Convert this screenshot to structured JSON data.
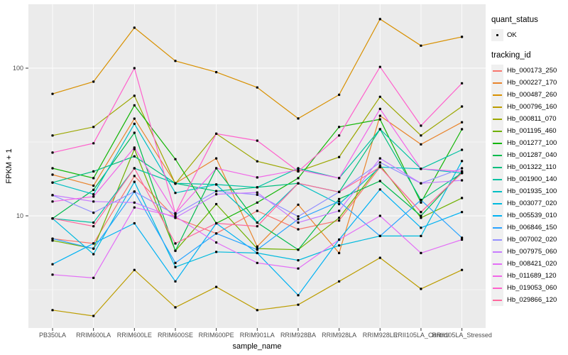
{
  "figure": {
    "background": "#FFFFFF",
    "panel_background": "#EBEBEB",
    "gridline_color": "#FFFFFF",
    "axis_text_color": "#4D4D4D",
    "tick_color": "#333333",
    "point_color": "#000000",
    "legend_key_background": "#F0F0F0"
  },
  "axes": {
    "x_title": "sample_name",
    "y_title": "FPKM + 1",
    "y_tick_labels": [
      "100",
      "10"
    ],
    "y_tick_values": [
      100,
      10
    ]
  },
  "legend": {
    "quant_status_title": "quant_status",
    "ok_label": "OK",
    "tracking_title": "tracking_id"
  },
  "chart_data": {
    "type": "line",
    "title": "",
    "xlabel": "sample_name",
    "ylabel": "FPKM + 1",
    "y_scale": "log10",
    "ylim": [
      1.74,
      271
    ],
    "y_major_breaks": [
      10,
      100
    ],
    "y_minor_breaks": [
      3.1623,
      31.623
    ],
    "grid": true,
    "legend_position": "right",
    "marker": "small black square (quant_status = OK)",
    "quant_status": "OK",
    "categories": [
      "PB350LA",
      "RRIM600LA",
      "RRIM600LE",
      "RRIM600SE",
      "RRIM600PE",
      "RRIM901LA",
      "RRIM928BA",
      "RRIM928LA",
      "RRIM928LE",
      "RRII105LA_Control",
      "RRII105LA_Stressed"
    ],
    "series": [
      {
        "name": "Hb_000173_250",
        "color": "#F8766D",
        "values": [
          7.0,
          6.5,
          18.6,
          9.7,
          7.6,
          10.8,
          8.1,
          9.3,
          21.4,
          10.6,
          19.5
        ]
      },
      {
        "name": "Hb_000227_170",
        "color": "#E9842C",
        "values": [
          19.0,
          16.0,
          45.5,
          16.6,
          24.5,
          6.2,
          11.9,
          5.6,
          47.6,
          30.5,
          43.0
        ]
      },
      {
        "name": "Hb_000487_260",
        "color": "#D89000",
        "values": [
          67,
          81,
          188,
          112,
          94,
          74,
          45.6,
          66,
          215,
          142,
          163
        ]
      },
      {
        "name": "Hb_000796_160",
        "color": "#BC9D00",
        "values": [
          2.3,
          2.1,
          4.3,
          2.4,
          3.3,
          2.3,
          2.5,
          3.6,
          5.2,
          3.2,
          4.3
        ]
      },
      {
        "name": "Hb_000811_070",
        "color": "#9CA700",
        "values": [
          35,
          40,
          65,
          16.5,
          36,
          23.4,
          20,
          25,
          64,
          35,
          55
        ]
      },
      {
        "name": "Hb_001195_460",
        "color": "#6FB000",
        "values": [
          6.8,
          6.0,
          28.3,
          5.8,
          12.0,
          6.0,
          5.9,
          9.7,
          22,
          9.7,
          13.2
        ]
      },
      {
        "name": "Hb_001277_100",
        "color": "#13B607",
        "values": [
          21,
          18,
          56,
          24.2,
          8.9,
          12.3,
          18,
          40,
          45,
          12.3,
          38.6
        ]
      },
      {
        "name": "Hb_001287_040",
        "color": "#00BB4E",
        "values": [
          9.6,
          15,
          36.5,
          5.8,
          21,
          9.0,
          5.9,
          13,
          17.2,
          10,
          20
        ]
      },
      {
        "name": "Hb_001322_110",
        "color": "#00BE7D",
        "values": [
          16.8,
          20,
          25.3,
          16.6,
          14.7,
          15.6,
          16.6,
          14.5,
          38.6,
          12.8,
          19.5
        ]
      },
      {
        "name": "Hb_001900_140",
        "color": "#00C1A2",
        "values": [
          9.6,
          9.0,
          21,
          16.6,
          16.3,
          15.6,
          21,
          18,
          38.6,
          20.8,
          28
        ]
      },
      {
        "name": "Hb_001935_100",
        "color": "#00BFC4",
        "values": [
          16.8,
          14,
          42,
          14.3,
          16.3,
          9.0,
          16.6,
          12,
          21.4,
          20.8,
          19.5
        ]
      },
      {
        "name": "Hb_003077_020",
        "color": "#00BADE",
        "values": [
          9.6,
          5.5,
          17,
          4.5,
          5.7,
          5.6,
          5.0,
          6.3,
          7.3,
          7.3,
          23.5
        ]
      },
      {
        "name": "Hb_005539_010",
        "color": "#00B2F3",
        "values": [
          4.7,
          6.5,
          8.9,
          3.6,
          8.9,
          5.6,
          2.9,
          6.9,
          15.1,
          8.3,
          10.6
        ]
      },
      {
        "name": "Hb_006846_150",
        "color": "#29A3FF",
        "values": [
          7.0,
          6.0,
          14.6,
          4.8,
          7.6,
          5.9,
          9.5,
          12.5,
          7.3,
          12.8,
          7.1
        ]
      },
      {
        "name": "Hb_007002_020",
        "color": "#9590FF",
        "values": [
          13.8,
          10.5,
          14.6,
          10.2,
          14.7,
          13.9,
          9.9,
          14.5,
          23,
          16.6,
          21
        ]
      },
      {
        "name": "Hb_007975_060",
        "color": "#C77CFF",
        "values": [
          13.8,
          12.5,
          12.3,
          9.7,
          14.0,
          14.4,
          9.0,
          10.8,
          24.5,
          16.6,
          17.4
        ]
      },
      {
        "name": "Hb_008421_020",
        "color": "#E36EF6",
        "values": [
          4.0,
          3.8,
          11.4,
          9.9,
          6.6,
          4.8,
          4.4,
          6.9,
          10.0,
          5.6,
          6.9
        ]
      },
      {
        "name": "Hb_011689_120",
        "color": "#F166E8",
        "values": [
          12.5,
          13.5,
          29,
          10.4,
          21,
          18.2,
          20.5,
          18,
          53,
          20.8,
          20
        ]
      },
      {
        "name": "Hb_019053_060",
        "color": "#FF61CC",
        "values": [
          26.8,
          31,
          100,
          10.4,
          36,
          32.3,
          20,
          35,
          102,
          40.8,
          79
        ]
      },
      {
        "name": "Hb_029866_120",
        "color": "#FF689E",
        "values": [
          9.6,
          8.5,
          21,
          6.5,
          8.9,
          8.5,
          16.6,
          14.5,
          21.4,
          10.6,
          19.5
        ]
      }
    ]
  }
}
